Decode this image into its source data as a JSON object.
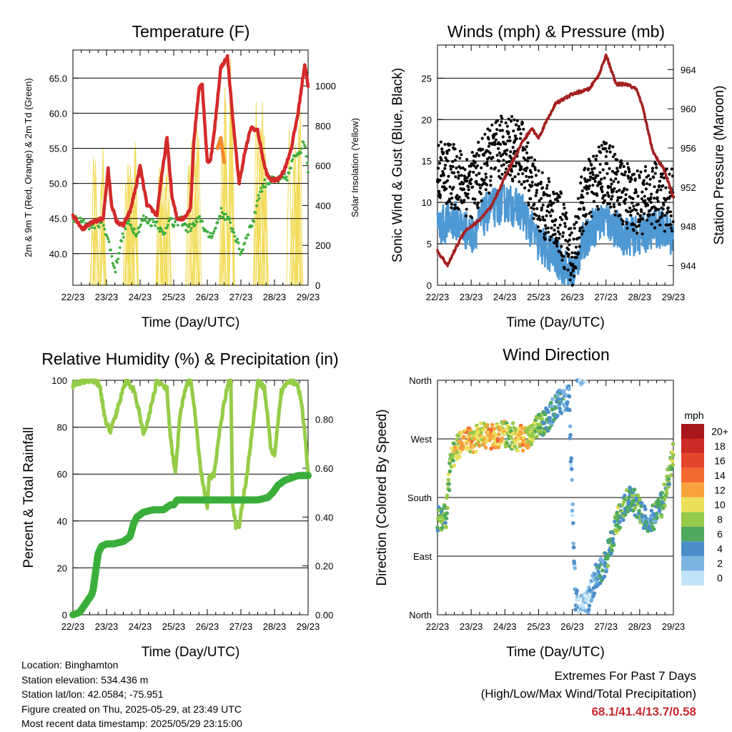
{
  "info": {
    "location": "Location: Binghamton",
    "elevation": "Station elevation: 534.436 m",
    "latlon": "Station lat/lon: 42.0584; -75.951",
    "created": "Figure created on Thu, 2025-05-29, at 23:49 UTC",
    "recent": "Most recent data timestamp: 2025/05/29 23:15:00"
  },
  "extremes": {
    "title": "Extremes For Past 7 Days",
    "subtitle": "(High/Low/Max Wind/Total Precipitation)",
    "values": "68.1/41.4/13.7/0.58"
  },
  "colors": {
    "temp": "#d42a2a",
    "temp_9m": "#f28a2e",
    "dewpoint": "#3eae3e",
    "solar": "#f2dc5a",
    "gust": "#000000",
    "wind": "#4e98d3",
    "pressure": "#a52020",
    "rh": "#95cc47",
    "precip": "#3aae3a"
  },
  "chart_data": [
    {
      "id": "temperature",
      "type": "line",
      "title": "Temperature (F)",
      "xlabel": "Time (Day/UTC)",
      "ylabel": "2m & 9m T (Red, Orange) & 2m Td (Green)",
      "y2label": "Solar Insolation (Yellow)",
      "x_ticks": [
        "22/23",
        "23/23",
        "24/23",
        "25/23",
        "26/23",
        "27/23",
        "28/23",
        "29/23"
      ],
      "ylim": [
        35.5,
        69.0
      ],
      "y_ticks": [
        40.0,
        45.0,
        50.0,
        55.0,
        60.0,
        65.0
      ],
      "y_tick_labels": [
        "40.0",
        "45.0",
        "50.0",
        "55.0",
        "60.0",
        "65.0"
      ],
      "y2lim": [
        0,
        1180
      ],
      "y2_ticks": [
        0,
        200,
        400,
        600,
        800,
        1000
      ],
      "grid": true,
      "series": [
        {
          "name": "2m T",
          "x": [
            0,
            0.3,
            0.6,
            0.9,
            1.05,
            1.15,
            1.3,
            1.5,
            1.7,
            1.9,
            2.0,
            2.2,
            2.5,
            2.6,
            2.8,
            2.95,
            3.1,
            3.3,
            3.5,
            3.6,
            3.75,
            3.85,
            4.0,
            4.1,
            4.2,
            4.4,
            4.6,
            4.8,
            4.95,
            5.1,
            5.3,
            5.5,
            5.7,
            5.8,
            5.9,
            6.1,
            6.3,
            6.5,
            6.7,
            6.9,
            7.0
          ],
          "values": [
            45.5,
            43.5,
            44.5,
            45.0,
            52.0,
            47.0,
            44.5,
            44.0,
            46.0,
            50.0,
            52.5,
            47.0,
            45.5,
            49.5,
            56.5,
            48.0,
            45.0,
            45.0,
            46.5,
            56.0,
            63.5,
            64.0,
            53.0,
            53.5,
            57.0,
            66.5,
            68.0,
            57.0,
            50.0,
            54.0,
            58.0,
            57.5,
            52.5,
            51.0,
            50.5,
            50.5,
            52.0,
            55.0,
            60.0,
            67.0,
            64.0
          ]
        },
        {
          "name": "9m T",
          "x": [
            4.3,
            4.4,
            4.5
          ],
          "values": [
            55.0,
            56.5,
            53.0
          ]
        },
        {
          "name": "2m Td",
          "x": [
            0,
            0.5,
            0.9,
            1.1,
            1.25,
            1.4,
            1.6,
            1.9,
            2.1,
            2.3,
            2.5,
            2.7,
            2.85,
            3.0,
            3.2,
            3.4,
            3.6,
            3.8,
            4.0,
            4.2,
            4.4,
            4.6,
            4.8,
            5.0,
            5.2,
            5.4,
            5.5,
            5.7,
            6.0,
            6.2,
            6.4,
            6.6,
            6.8,
            6.9,
            7.0
          ],
          "values": [
            45.0,
            44.0,
            44.5,
            41.0,
            37.5,
            41.0,
            44.5,
            43.0,
            45.0,
            44.5,
            44.5,
            42.5,
            45.0,
            44.0,
            45.0,
            43.5,
            44.0,
            45.0,
            42.5,
            43.0,
            46.0,
            45.0,
            43.0,
            40.0,
            43.0,
            45.0,
            48.0,
            50.0,
            50.5,
            50.5,
            51.0,
            54.0,
            55.0,
            56.0,
            52.0
          ]
        },
        {
          "name": "Solar",
          "day_peaks": [
            720,
            740,
            760,
            940,
            1150,
            960,
            920
          ],
          "day_peak_x": [
            0.75,
            1.7,
            2.7,
            3.6,
            4.6,
            5.6,
            6.6
          ]
        }
      ]
    },
    {
      "id": "winds",
      "type": "line",
      "title": "Winds (mph) & Pressure (mb)",
      "xlabel": "Time (Day/UTC)",
      "ylabel": "Sonic Wind & Gust (Blue, Black)",
      "y2label": "Station Pressure (Maroon)",
      "x_ticks": [
        "22/23",
        "23/23",
        "24/23",
        "25/23",
        "26/23",
        "27/23",
        "28/23",
        "29/23"
      ],
      "ylim": [
        0,
        29
      ],
      "y_ticks": [
        0,
        5,
        10,
        15,
        20,
        25
      ],
      "y2lim": [
        942.0,
        966.5
      ],
      "y2_ticks": [
        944,
        948,
        952,
        956,
        960,
        964
      ],
      "grid": true,
      "series": [
        {
          "name": "Wind",
          "x": [
            0,
            0.5,
            1.0,
            1.5,
            2.0,
            2.5,
            3.0,
            3.3,
            3.6,
            4.0,
            4.3,
            4.6,
            5.0,
            5.5,
            6.0,
            6.5,
            7.0
          ],
          "values": [
            7,
            8,
            6,
            9,
            10,
            9,
            5,
            4,
            3,
            1,
            5,
            7,
            8,
            6,
            6,
            7,
            6
          ]
        },
        {
          "name": "Gust",
          "x": [
            0,
            0.5,
            1.0,
            1.5,
            2.0,
            2.5,
            3.0,
            3.3,
            3.6,
            4.0,
            4.3,
            4.6,
            5.0,
            5.5,
            6.0,
            6.5,
            7.0
          ],
          "values": [
            14,
            13,
            12,
            15,
            17,
            16,
            10,
            9,
            8,
            3,
            10,
            12,
            14,
            11,
            10,
            11,
            10
          ]
        },
        {
          "name": "Pressure",
          "x": [
            0,
            0.3,
            0.5,
            0.8,
            1.2,
            1.6,
            2.0,
            2.5,
            2.8,
            3.0,
            3.2,
            3.5,
            4.0,
            4.5,
            4.8,
            5.0,
            5.3,
            5.6,
            5.9,
            6.1,
            6.4,
            6.7,
            7.0
          ],
          "values": [
            945.5,
            944.0,
            945.5,
            947.5,
            948.5,
            950.0,
            953.0,
            956.5,
            958.0,
            957.0,
            958.5,
            960.5,
            961.5,
            962.0,
            963.5,
            965.5,
            962.5,
            962.5,
            962.0,
            960.0,
            955.5,
            954.0,
            951.0
          ]
        }
      ]
    },
    {
      "id": "humidity",
      "type": "line",
      "title": "Relative Humidity (%) & Precipitation (in)",
      "xlabel": "Time (Day/UTC)",
      "ylabel": "Percent & Total Rainfall",
      "x_ticks": [
        "22/23",
        "23/23",
        "24/23",
        "25/23",
        "26/23",
        "27/23",
        "28/23",
        "29/23"
      ],
      "ylim": [
        0,
        100
      ],
      "y_ticks": [
        0,
        20,
        40,
        60,
        80,
        100
      ],
      "y2lim": [
        0,
        0.96
      ],
      "y2_ticks": [
        0.0,
        0.2,
        0.4,
        0.6,
        0.8
      ],
      "y2_tick_labels": [
        "0.00",
        "0.20",
        "0.40",
        "0.60",
        "0.80"
      ],
      "grid": true,
      "series": [
        {
          "name": "RH",
          "x": [
            0,
            0.3,
            0.6,
            0.8,
            0.95,
            1.1,
            1.3,
            1.5,
            1.6,
            1.8,
            2.0,
            2.1,
            2.3,
            2.5,
            2.8,
            2.9,
            3.05,
            3.2,
            3.4,
            3.5,
            3.6,
            3.8,
            4.0,
            4.05,
            4.2,
            4.4,
            4.6,
            4.7,
            4.75,
            4.85,
            4.95,
            5.2,
            5.5,
            5.7,
            5.9,
            6.0,
            6.2,
            6.4,
            6.5,
            6.7,
            6.8,
            6.9,
            7.0
          ],
          "values": [
            98,
            100,
            100,
            98,
            84,
            78,
            86,
            97,
            100,
            96,
            85,
            76,
            87,
            100,
            96,
            75,
            60,
            87,
            99,
            100,
            90,
            62,
            46,
            58,
            60,
            82,
            98,
            100,
            48,
            38,
            38,
            62,
            99,
            97,
            70,
            67,
            95,
            100,
            100,
            98,
            90,
            78,
            60
          ]
        },
        {
          "name": "Precip",
          "x": [
            0,
            0.2,
            0.4,
            0.55,
            0.6,
            0.7,
            0.75,
            0.85,
            1.0,
            1.2,
            1.5,
            1.7,
            1.8,
            1.9,
            2.0,
            2.1,
            2.4,
            2.7,
            2.9,
            3.0,
            3.1,
            3.3,
            3.8,
            4.2,
            5.1,
            5.5,
            5.8,
            5.95,
            6.1,
            6.3,
            6.5,
            6.7,
            6.8,
            7.0
          ],
          "values": [
            0.0,
            0.01,
            0.05,
            0.08,
            0.1,
            0.2,
            0.25,
            0.28,
            0.29,
            0.29,
            0.3,
            0.32,
            0.37,
            0.4,
            0.41,
            0.42,
            0.43,
            0.43,
            0.45,
            0.45,
            0.47,
            0.47,
            0.47,
            0.47,
            0.47,
            0.47,
            0.48,
            0.5,
            0.53,
            0.55,
            0.56,
            0.57,
            0.57,
            0.57
          ]
        }
      ]
    },
    {
      "id": "direction",
      "type": "scatter",
      "title": "Wind Direction",
      "xlabel": "Time (Day/UTC)",
      "ylabel": "Direction (Colored By Speed)",
      "x_ticks": [
        "22/23",
        "23/23",
        "24/23",
        "25/23",
        "26/23",
        "27/23",
        "28/23",
        "29/23"
      ],
      "ylim": [
        0,
        360
      ],
      "y_ticks": [
        0,
        90,
        180,
        270,
        360
      ],
      "y_tick_labels": [
        "North",
        "East",
        "South",
        "West",
        "North"
      ],
      "grid": true,
      "colorbar": {
        "unit": "mph",
        "labels": [
          "20+",
          "18",
          "16",
          "14",
          "12",
          "10",
          "8",
          "6",
          "4",
          "2",
          "0"
        ],
        "colors": [
          "#a6161a",
          "#cc2a24",
          "#e4462c",
          "#f26a30",
          "#f8a23c",
          "#ece05a",
          "#96c84a",
          "#4eaa5c",
          "#4a8ec8",
          "#7cb4e2",
          "#c2e4f8"
        ]
      },
      "series": [
        {
          "name": "Direction",
          "x": [
            0,
            0.25,
            0.4,
            0.6,
            0.8,
            1.0,
            1.3,
            1.6,
            1.9,
            2.2,
            2.5,
            2.8,
            3.0,
            3.1,
            3.3,
            3.5,
            3.7,
            3.9,
            4.1,
            4.3,
            4.5,
            4.7,
            4.9,
            5.1,
            5.3,
            5.5,
            5.7,
            5.9,
            6.1,
            6.3,
            6.5,
            6.7,
            6.9,
            7.0
          ],
          "values": [
            145,
            150,
            240,
            258,
            270,
            265,
            275,
            272,
            278,
            275,
            270,
            280,
            290,
            295,
            300,
            320,
            330,
            335,
            20,
            10,
            25,
            60,
            70,
            100,
            140,
            160,
            180,
            170,
            150,
            145,
            155,
            175,
            220,
            245
          ],
          "speeds": [
            6,
            7,
            8,
            10,
            12,
            11,
            9,
            12,
            10,
            8,
            12,
            9,
            7,
            6,
            5,
            4,
            3,
            3,
            2,
            1,
            2,
            3,
            4,
            5,
            7,
            6,
            5,
            6,
            5,
            4,
            5,
            6,
            7,
            8
          ]
        }
      ]
    }
  ]
}
